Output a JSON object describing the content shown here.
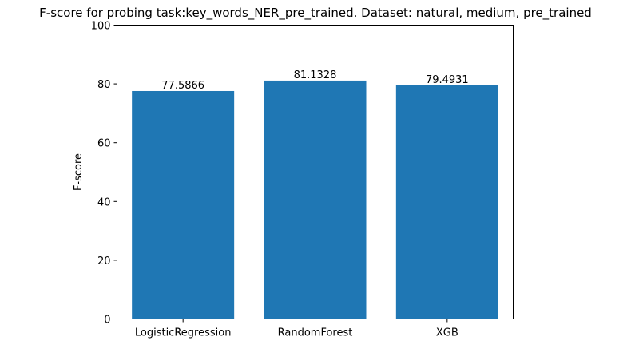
{
  "chart_data": {
    "type": "bar",
    "title": "F-score for probing task:key_words_NER_pre_trained. Dataset: natural, medium, pre_trained",
    "xlabel": "",
    "ylabel": "F-score",
    "categories": [
      "LogisticRegression",
      "RandomForest",
      "XGB"
    ],
    "values": [
      77.5866,
      81.1328,
      79.4931
    ],
    "data_labels": [
      "77.5866",
      "81.1328",
      "79.4931"
    ],
    "ylim": [
      0,
      100
    ],
    "yticks": [
      0,
      20,
      40,
      60,
      80,
      100
    ],
    "grid": false,
    "bar_color": "#1f77b4"
  }
}
